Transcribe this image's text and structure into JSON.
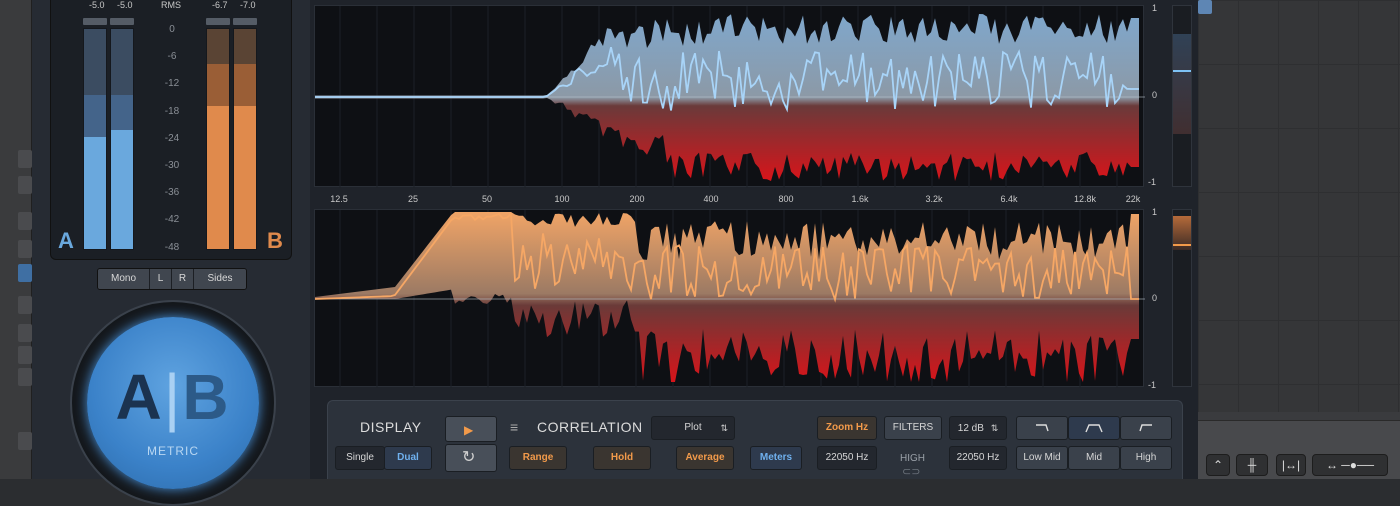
{
  "meters": {
    "peak_labels": [
      "-5.0",
      "-5.0",
      "RMS",
      "-6.7",
      "-7.0"
    ],
    "scale": [
      "0",
      "-6",
      "-12",
      "-18",
      "-24",
      "-30",
      "-36",
      "-42",
      "-48"
    ],
    "label_a": "A",
    "label_b": "B",
    "level_a": 0.5,
    "level_b": 0.65,
    "color_a": "#6aa8dd",
    "color_b": "#e08a4c"
  },
  "channel_modes": [
    "Mono",
    "L",
    "R",
    "Sides"
  ],
  "knob": {
    "a": "A",
    "sep": "|",
    "b": "B",
    "label": "METRIC"
  },
  "graph": {
    "x_ticks": [
      "12.5",
      "25",
      "50",
      "100",
      "200",
      "400",
      "800",
      "1.6k",
      "3.2k",
      "6.4k",
      "12.8k",
      "22k"
    ],
    "top_y": [
      "1",
      "0",
      "-1"
    ],
    "bot_y": [
      "1",
      "0",
      "-1"
    ]
  },
  "controls": {
    "display_title": "DISPLAY",
    "display_modes": [
      "Single",
      "Dual"
    ],
    "play_icon": "play-icon",
    "reset_icon": "reset-icon",
    "menu_icon": "menu-icon",
    "correlation_title": "CORRELATION",
    "plot_select": "Plot",
    "range": "Range",
    "hold": "Hold",
    "average": "Average",
    "meters": "Meters",
    "zoom": "Zoom Hz",
    "filters": "FILTERS",
    "db_select": "12 dB",
    "freq_left": "22050 Hz",
    "high_label": "HIGH",
    "freq_right": "22050 Hz",
    "bands": [
      "Low Mid",
      "Mid",
      "High"
    ],
    "filter_shapes": [
      "highpass-icon",
      "bandpass-icon",
      "lowpass-icon"
    ]
  },
  "accent_blue": "#6fb0ee",
  "accent_orange": "#f29a4a"
}
